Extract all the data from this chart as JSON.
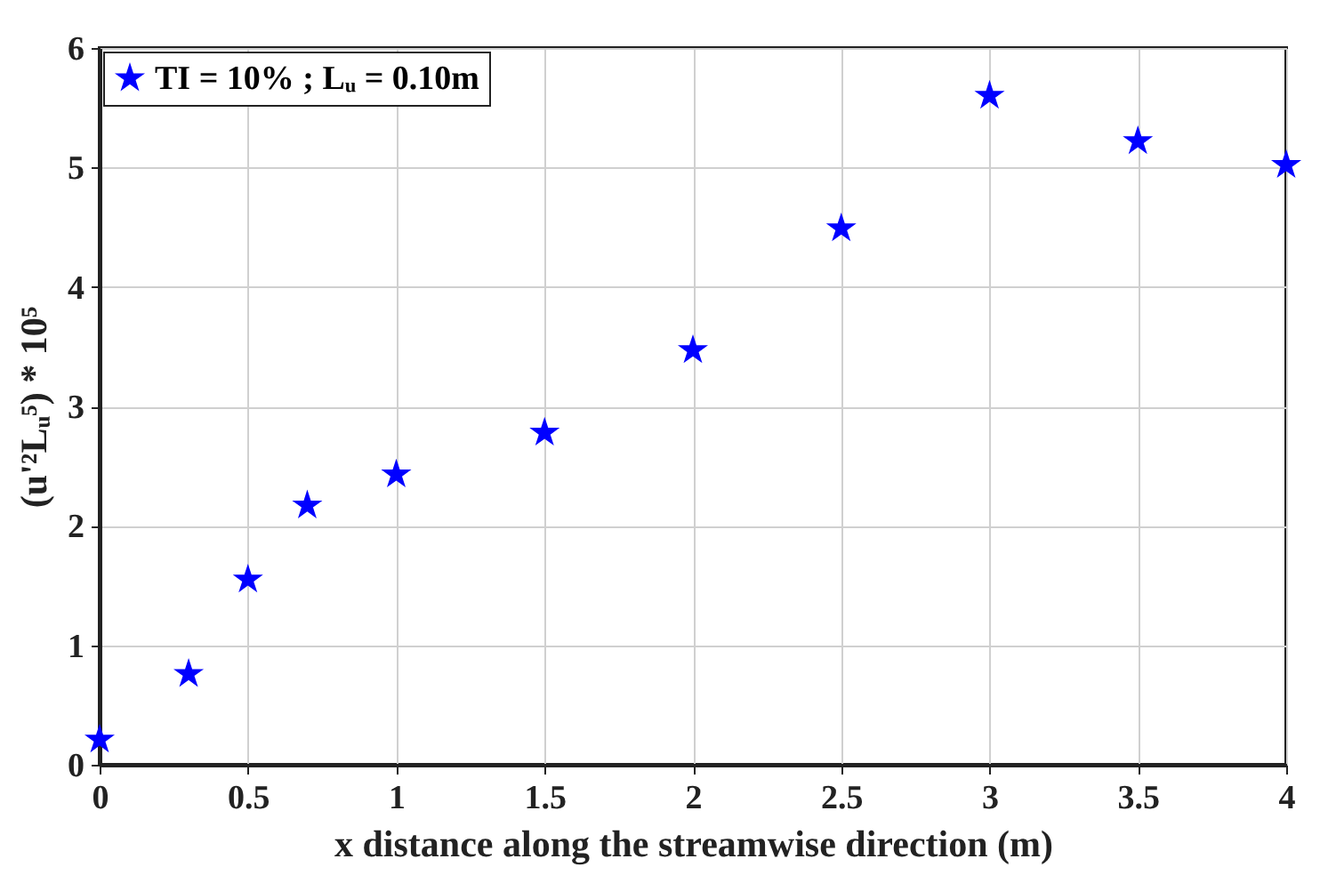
{
  "chart_data": {
    "type": "scatter",
    "xlabel": "x distance along the streamwise direction (m)",
    "ylabel": "(u'²Lᵤ⁵) * 10⁵",
    "x": [
      0,
      0.3,
      0.5,
      0.7,
      1,
      1.5,
      2,
      2.5,
      3,
      3.5,
      4
    ],
    "series": [
      {
        "name": "TI = 10% ; Lᵤ = 0.10m",
        "color": "#0000ff",
        "values": [
          0.21,
          0.76,
          1.55,
          2.17,
          2.43,
          2.78,
          3.47,
          4.49,
          5.6,
          5.22,
          5.02
        ]
      }
    ],
    "xlim": [
      0,
      4
    ],
    "xticks": [
      0,
      0.5,
      1,
      1.5,
      2,
      2.5,
      3,
      3.5,
      4
    ],
    "ylim": [
      0,
      6
    ],
    "yticks": [
      0,
      1,
      2,
      3,
      4,
      5,
      6
    ],
    "grid": true,
    "legend": "top left",
    "marker": "star"
  }
}
